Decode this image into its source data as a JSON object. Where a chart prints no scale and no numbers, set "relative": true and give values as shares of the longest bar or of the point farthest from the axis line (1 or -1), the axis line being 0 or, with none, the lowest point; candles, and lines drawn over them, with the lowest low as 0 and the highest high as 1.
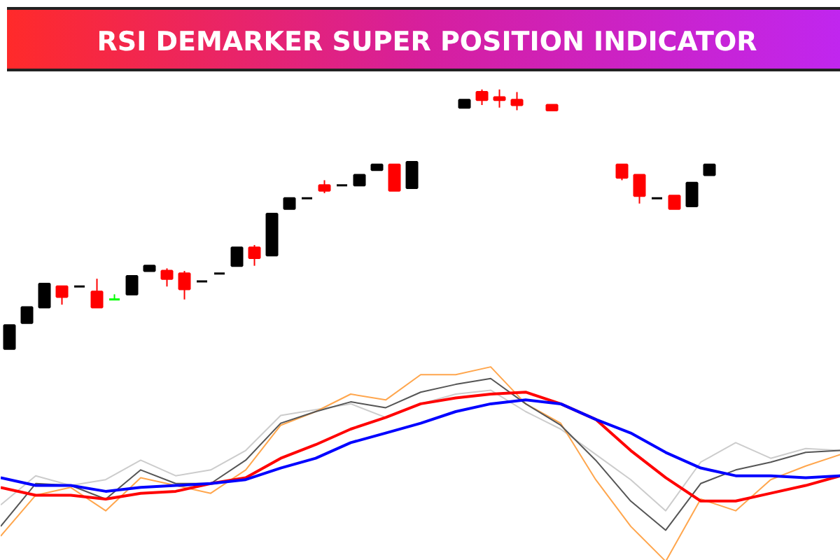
{
  "chart_data": [
    {
      "type": "candlestick",
      "title": "RSI DEMARKER SUPER POSITION INDICATOR",
      "relative": true,
      "grid": false,
      "categories": [
        null,
        null,
        null,
        null,
        null,
        null,
        null,
        null,
        null,
        null,
        null,
        null,
        null,
        null,
        null,
        null,
        null,
        null,
        null,
        null,
        null,
        null,
        null,
        null,
        null,
        null,
        null,
        null,
        null,
        null,
        null,
        null,
        null,
        null,
        null,
        null,
        null,
        null,
        null,
        null,
        null,
        null,
        null,
        null,
        null,
        null,
        null,
        null
      ],
      "ohlc": [
        [
          0,
          0.09,
          0,
          0.09
        ],
        [
          0.1,
          0.16,
          0.1,
          0.16
        ],
        [
          0.16,
          0.25,
          0.16,
          0.25
        ],
        [
          0.24,
          0.24,
          0.17,
          0.2
        ],
        [
          0.24,
          0.24,
          0.24,
          0.24
        ],
        [
          0.22,
          0.27,
          0.16,
          0.16
        ],
        [
          0.19,
          0.21,
          0.19,
          0.19
        ],
        [
          0.21,
          0.28,
          0.21,
          0.28
        ],
        [
          0.3,
          0.32,
          0.3,
          0.32
        ],
        [
          0.3,
          0.31,
          0.24,
          0.27
        ],
        [
          0.29,
          0.3,
          0.19,
          0.23
        ],
        [
          0.26,
          0.26,
          0.26,
          0.26
        ],
        [
          0.29,
          0.29,
          0.29,
          0.29
        ],
        [
          0.32,
          0.39,
          0.32,
          0.39
        ],
        [
          0.39,
          0.4,
          0.32,
          0.35
        ],
        [
          0.36,
          0.52,
          0.36,
          0.52
        ],
        [
          0.54,
          0.58,
          0.54,
          0.58
        ],
        [
          0.58,
          0.58,
          0.58,
          0.58
        ],
        [
          0.63,
          0.65,
          0.6,
          0.61
        ],
        [
          0.63,
          0.63,
          0.63,
          0.63
        ],
        [
          0.63,
          0.67,
          0.63,
          0.67
        ],
        [
          0.69,
          0.71,
          0.69,
          0.71
        ],
        [
          0.71,
          0.71,
          0.61,
          0.61
        ],
        [
          0.62,
          0.72,
          0.62,
          0.72
        ],
        null,
        null,
        [
          0.93,
          0.96,
          0.93,
          0.96
        ],
        [
          0.99,
          1,
          0.94,
          0.96
        ],
        [
          0.97,
          1,
          0.93,
          0.96
        ],
        [
          0.96,
          0.99,
          0.92,
          0.94
        ],
        null,
        [
          0.94,
          0.94,
          0.92,
          0.92
        ],
        null,
        null,
        null,
        [
          0.71,
          0.71,
          0.65,
          0.66
        ],
        [
          0.67,
          0.67,
          0.56,
          0.59
        ],
        [
          0.58,
          0.58,
          0.58,
          0.58
        ],
        [
          0.59,
          0.59,
          0.54,
          0.54
        ],
        [
          0.55,
          0.64,
          0.55,
          0.64
        ],
        [
          0.67,
          0.71,
          0.67,
          0.71
        ],
        null,
        null,
        null,
        null,
        null,
        null,
        null
      ],
      "colors": [
        "#000000",
        "#000000",
        "#000000",
        "#ff0000",
        "#000000",
        "#ff0000",
        "#00ff00",
        "#000000",
        "#000000",
        "#ff0000",
        "#ff0000",
        "#000000",
        "#000000",
        "#000000",
        "#ff0000",
        "#000000",
        "#000000",
        "#000000",
        "#ff0000",
        "#000000",
        "#000000",
        "#000000",
        "#ff0000",
        "#000000",
        "#000000",
        "#000000",
        "#000000",
        "#ff0000",
        "#ff0000",
        "#ff0000",
        "#000000",
        "#ff0000",
        "#000000",
        "#000000",
        "#000000",
        "#ff0000",
        "#ff0000",
        "#000000",
        "#ff0000",
        "#000000",
        "#000000",
        "#000000",
        "#000000",
        "#000000",
        "#000000",
        "#000000",
        "#000000",
        "#000000"
      ]
    },
    {
      "type": "line",
      "relative": true,
      "grid": false,
      "marker": "none",
      "line_style": "solid",
      "categories": [
        null,
        null,
        null,
        null,
        null,
        null,
        null,
        null,
        null,
        null,
        null,
        null,
        null,
        null,
        null,
        null,
        null,
        null,
        null,
        null,
        null,
        null,
        null,
        null,
        null
      ],
      "series": [
        {
          "color": "#cccccc",
          "values": [
            0.29,
            0.44,
            0.39,
            0.42,
            0.52,
            0.44,
            0.47,
            0.57,
            0.75,
            0.78,
            0.81,
            0.74,
            0.81,
            0.86,
            0.88,
            0.77,
            0.68,
            0.55,
            0.42,
            0.26,
            0.51,
            0.61,
            0.53,
            0.58,
            0.57
          ]
        },
        {
          "color": "#ffa64d",
          "values": [
            0.13,
            0.34,
            0.38,
            0.26,
            0.43,
            0.39,
            0.35,
            0.47,
            0.7,
            0.77,
            0.86,
            0.83,
            0.96,
            0.96,
            1,
            0.81,
            0.71,
            0.42,
            0.18,
            0,
            0.32,
            0.26,
            0.42,
            0.49,
            0.55
          ]
        },
        {
          "color": "#555555",
          "values": [
            0.18,
            0.4,
            0.39,
            0.32,
            0.47,
            0.4,
            0.4,
            0.52,
            0.71,
            0.77,
            0.82,
            0.79,
            0.87,
            0.91,
            0.94,
            0.81,
            0.7,
            0.52,
            0.31,
            0.16,
            0.4,
            0.47,
            0.51,
            0.56,
            0.57
          ]
        },
        {
          "color": "#ff0000",
          "values": [
            0.38,
            0.34,
            0.34,
            0.32,
            0.35,
            0.36,
            0.4,
            0.43,
            0.53,
            0.6,
            0.68,
            0.74,
            0.81,
            0.84,
            0.86,
            0.87,
            0.81,
            0.73,
            0.57,
            0.43,
            0.31,
            0.31,
            0.35,
            0.39,
            0.44
          ]
        },
        {
          "color": "#0000ff",
          "values": [
            0.43,
            0.39,
            0.39,
            0.36,
            0.38,
            0.39,
            0.4,
            0.42,
            0.48,
            0.53,
            0.61,
            0.66,
            0.71,
            0.77,
            0.81,
            0.83,
            0.81,
            0.73,
            0.66,
            0.56,
            0.48,
            0.44,
            0.44,
            0.43,
            0.44
          ]
        }
      ]
    }
  ]
}
